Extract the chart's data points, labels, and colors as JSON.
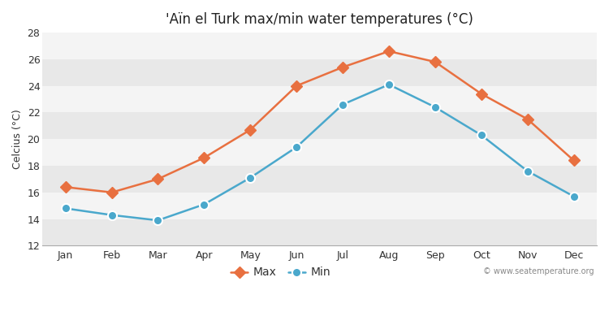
{
  "title": "'Aïn el Turk max/min water temperatures (°C)",
  "ylabel": "Celcius (°C)",
  "months": [
    "Jan",
    "Feb",
    "Mar",
    "Apr",
    "May",
    "Jun",
    "Jul",
    "Aug",
    "Sep",
    "Oct",
    "Nov",
    "Dec"
  ],
  "max_values": [
    16.4,
    16.0,
    17.0,
    18.6,
    20.7,
    24.0,
    25.4,
    26.6,
    25.8,
    23.4,
    21.5,
    18.4
  ],
  "min_values": [
    14.8,
    14.3,
    13.9,
    15.1,
    17.1,
    19.4,
    22.6,
    24.1,
    22.4,
    20.3,
    17.6,
    15.7
  ],
  "max_color": "#e87040",
  "min_color": "#4aa8cc",
  "fig_bg_color": "#ffffff",
  "band_colors": [
    "#e8e8e8",
    "#f4f4f4"
  ],
  "ylim": [
    12,
    28
  ],
  "yticks": [
    12,
    14,
    16,
    18,
    20,
    22,
    24,
    26,
    28
  ],
  "watermark": "© www.seatemperature.org",
  "legend_labels": [
    "Max",
    "Min"
  ],
  "linewidth": 1.8,
  "markersize_max": 7,
  "markersize_min": 8,
  "title_fontsize": 12,
  "axis_fontsize": 9,
  "legend_fontsize": 10
}
